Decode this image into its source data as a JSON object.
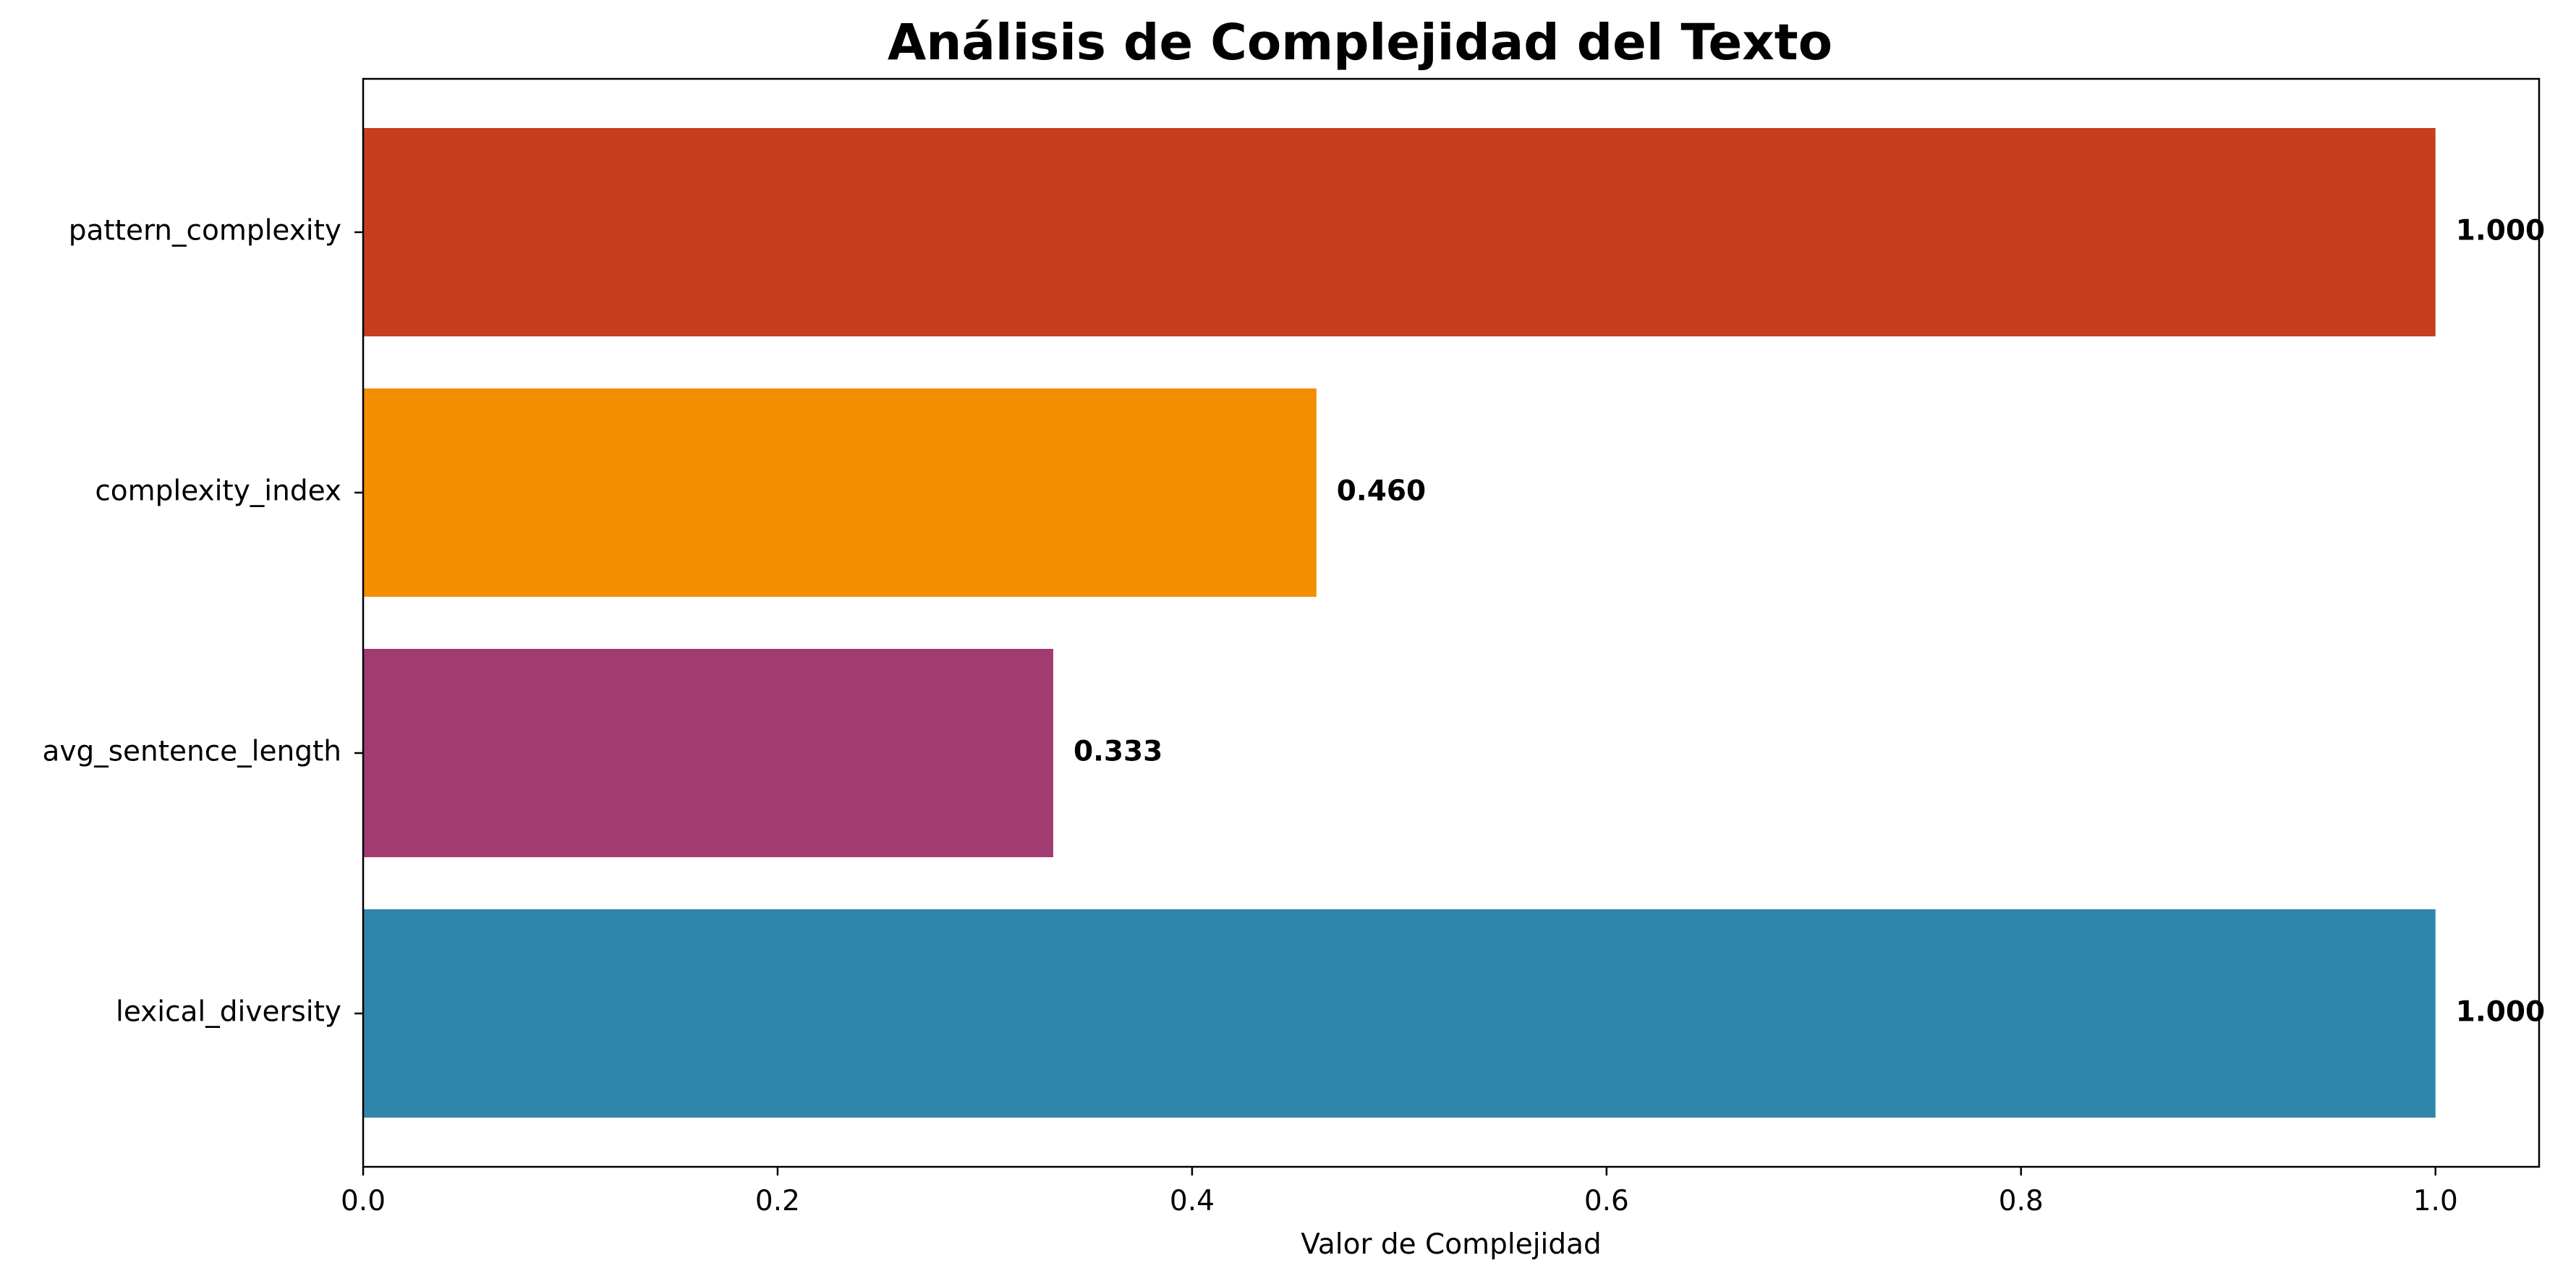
{
  "chart_data": {
    "type": "bar",
    "orientation": "horizontal",
    "title": "Análisis de Complejidad del Texto",
    "xlabel": "Valor de Complejidad",
    "ylabel": "",
    "categories": [
      "lexical_diversity",
      "avg_sentence_length",
      "complexity_index",
      "pattern_complexity"
    ],
    "values": [
      1.0,
      0.333,
      0.46,
      1.0
    ],
    "value_labels": [
      "1.000",
      "0.333",
      "0.460",
      "1.000"
    ],
    "colors": [
      "#2E86AB",
      "#A23B72",
      "#F18F01",
      "#C73E1D"
    ],
    "xlim": [
      0,
      1.05
    ],
    "xticks": [
      0.0,
      0.2,
      0.4,
      0.6,
      0.8,
      1.0
    ],
    "xtick_labels": [
      "0.0",
      "0.2",
      "0.4",
      "0.6",
      "0.8",
      "1.0"
    ],
    "grid": false,
    "legend": "none"
  }
}
